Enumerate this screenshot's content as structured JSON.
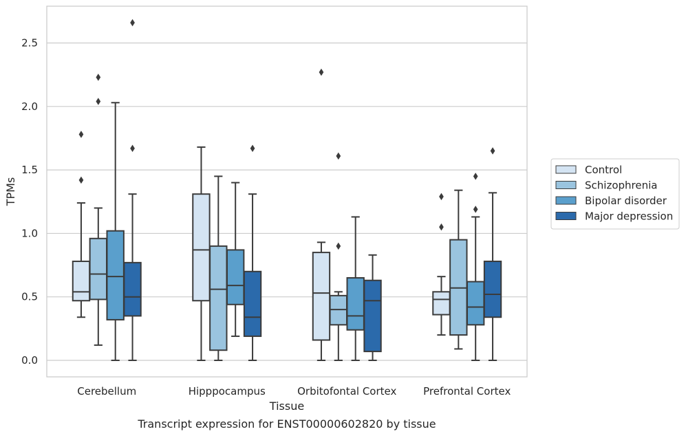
{
  "chart_data": {
    "type": "box",
    "title": "",
    "caption": "Transcript expression for ENST00000602820 by tissue",
    "xlabel": "Tissue",
    "ylabel": "TPMs",
    "ylim": [
      -0.13,
      2.79
    ],
    "yticks": [
      0.0,
      0.5,
      1.0,
      1.5,
      2.0,
      2.5
    ],
    "ytick_labels": [
      "0.0",
      "0.5",
      "1.0",
      "1.5",
      "2.0",
      "2.5"
    ],
    "grid": "horizontal",
    "legend_position": "right",
    "categories": [
      "Cerebellum",
      "Hipppocampus",
      "Orbitofontal Cortex",
      "Prefrontal Cortex"
    ],
    "series": [
      {
        "name": "Control",
        "color": "#d4e4f3",
        "boxes": [
          {
            "whisker_low": 0.34,
            "q1": 0.47,
            "median": 0.54,
            "q3": 0.78,
            "whisker_high": 1.24,
            "outliers": [
              1.42,
              1.78
            ]
          },
          {
            "whisker_low": 0.0,
            "q1": 0.47,
            "median": 0.87,
            "q3": 1.31,
            "whisker_high": 1.68,
            "outliers": []
          },
          {
            "whisker_low": 0.0,
            "q1": 0.16,
            "median": 0.53,
            "q3": 0.85,
            "whisker_high": 0.93,
            "outliers": [
              2.27
            ]
          },
          {
            "whisker_low": 0.2,
            "q1": 0.36,
            "median": 0.48,
            "q3": 0.54,
            "whisker_high": 0.66,
            "outliers": [
              1.05,
              1.29
            ]
          }
        ]
      },
      {
        "name": "Schizophrenia",
        "color": "#9ac4df",
        "boxes": [
          {
            "whisker_low": 0.12,
            "q1": 0.48,
            "median": 0.68,
            "q3": 0.96,
            "whisker_high": 1.2,
            "outliers": [
              2.04,
              2.23
            ]
          },
          {
            "whisker_low": 0.0,
            "q1": 0.08,
            "median": 0.56,
            "q3": 0.9,
            "whisker_high": 1.45,
            "outliers": []
          },
          {
            "whisker_low": 0.0,
            "q1": 0.28,
            "median": 0.4,
            "q3": 0.51,
            "whisker_high": 0.54,
            "outliers": [
              0.9,
              1.61
            ]
          },
          {
            "whisker_low": 0.09,
            "q1": 0.2,
            "median": 0.57,
            "q3": 0.95,
            "whisker_high": 1.34,
            "outliers": []
          }
        ]
      },
      {
        "name": "Bipolar disorder",
        "color": "#5a9fcc",
        "boxes": [
          {
            "whisker_low": 0.0,
            "q1": 0.32,
            "median": 0.66,
            "q3": 1.02,
            "whisker_high": 2.03,
            "outliers": []
          },
          {
            "whisker_low": 0.19,
            "q1": 0.44,
            "median": 0.59,
            "q3": 0.87,
            "whisker_high": 1.4,
            "outliers": []
          },
          {
            "whisker_low": 0.0,
            "q1": 0.24,
            "median": 0.35,
            "q3": 0.65,
            "whisker_high": 1.13,
            "outliers": []
          },
          {
            "whisker_low": 0.0,
            "q1": 0.28,
            "median": 0.42,
            "q3": 0.62,
            "whisker_high": 1.13,
            "outliers": [
              1.19,
              1.45
            ]
          }
        ]
      },
      {
        "name": "Major depression",
        "color": "#2b6aab",
        "boxes": [
          {
            "whisker_low": 0.0,
            "q1": 0.35,
            "median": 0.5,
            "q3": 0.77,
            "whisker_high": 1.31,
            "outliers": [
              1.67,
              2.66
            ]
          },
          {
            "whisker_low": 0.0,
            "q1": 0.19,
            "median": 0.34,
            "q3": 0.7,
            "whisker_high": 1.31,
            "outliers": [
              1.67
            ]
          },
          {
            "whisker_low": 0.0,
            "q1": 0.07,
            "median": 0.47,
            "q3": 0.63,
            "whisker_high": 0.83,
            "outliers": []
          },
          {
            "whisker_low": 0.0,
            "q1": 0.34,
            "median": 0.52,
            "q3": 0.78,
            "whisker_high": 1.32,
            "outliers": [
              1.65
            ]
          }
        ]
      }
    ]
  }
}
